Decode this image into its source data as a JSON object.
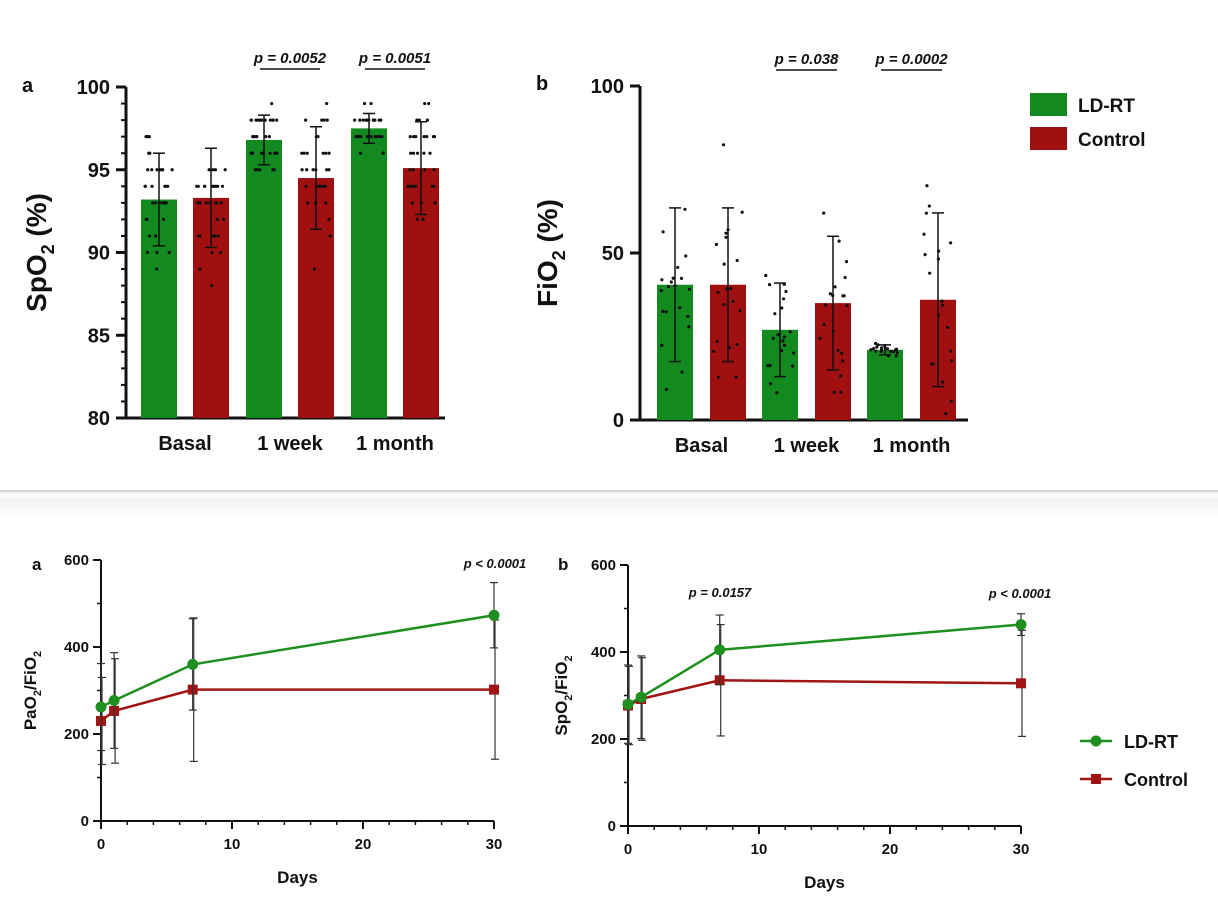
{
  "chart_data": [
    {
      "panel": "a",
      "type": "bar",
      "ylabel_main": "SpO",
      "ylabel_sub": "2",
      "ylabel_tail": " (%)",
      "ylim": [
        80,
        100
      ],
      "yticks": [
        "80",
        "85",
        "90",
        "95",
        "100"
      ],
      "categories": [
        "Basal",
        "1 week",
        "1 month"
      ],
      "series": [
        {
          "name": "LD-RT",
          "values": [
            93.2,
            96.8,
            97.5
          ],
          "sd": [
            2.8,
            1.5,
            0.9
          ]
        },
        {
          "name": "Control",
          "values": [
            93.3,
            94.5,
            95.1
          ],
          "sd": [
            3.0,
            3.1,
            2.8
          ]
        }
      ],
      "annotations": [
        "p = 0.0052",
        "p = 0.0051"
      ]
    },
    {
      "panel": "b",
      "type": "bar",
      "ylabel_main": "FiO",
      "ylabel_sub": "2",
      "ylabel_tail": " (%)",
      "ylim": [
        0,
        100
      ],
      "yticks": [
        "0",
        "50",
        "100"
      ],
      "categories": [
        "Basal",
        "1 week",
        "1 month"
      ],
      "series": [
        {
          "name": "LD-RT",
          "values": [
            40.5,
            27,
            21
          ],
          "sd": [
            23,
            14,
            1.5
          ]
        },
        {
          "name": "Control",
          "values": [
            40.5,
            35,
            36
          ],
          "sd": [
            23,
            20,
            26
          ]
        }
      ],
      "annotations": [
        "p = 0.038",
        "p = 0.0002"
      ]
    },
    {
      "panel": "a",
      "type": "line",
      "ylabel_main": "PaO",
      "ylabel_sub": "2",
      "ylabel_tail": "/FiO",
      "ylabel_sub2": "2",
      "xlabel": "Days",
      "xlim": [
        0,
        30
      ],
      "ylim": [
        0,
        600
      ],
      "xticks": [
        "0",
        "10",
        "20",
        "30"
      ],
      "yticks": [
        "0",
        "200",
        "400",
        "600"
      ],
      "x": [
        0,
        1,
        7,
        30
      ],
      "series": [
        {
          "name": "LD-RT",
          "values": [
            262,
            277,
            360,
            473
          ],
          "sd": [
            100,
            110,
            105,
            75
          ]
        },
        {
          "name": "Control",
          "values": [
            230,
            253,
            302,
            302
          ],
          "sd": [
            100,
            120,
            165,
            160
          ]
        }
      ],
      "annotations": [
        "p < 0.0001"
      ]
    },
    {
      "panel": "b",
      "type": "line",
      "ylabel_main": "SpO",
      "ylabel_sub": "2",
      "ylabel_tail": "/FiO",
      "ylabel_sub2": "2",
      "xlabel": "Days",
      "xlim": [
        0,
        30
      ],
      "ylim": [
        0,
        600
      ],
      "xticks": [
        "0",
        "10",
        "20",
        "30"
      ],
      "yticks": [
        "0",
        "200",
        "400",
        "600"
      ],
      "x": [
        0,
        1,
        7,
        30
      ],
      "series": [
        {
          "name": "LD-RT",
          "values": [
            280,
            296,
            405,
            463
          ],
          "sd": [
            90,
            95,
            80,
            25
          ]
        },
        {
          "name": "Control",
          "values": [
            277,
            292,
            335,
            328
          ],
          "sd": [
            90,
            95,
            128,
            122
          ]
        }
      ],
      "annotations": [
        "p = 0.0157",
        "p < 0.0001"
      ]
    }
  ],
  "legend_top": [
    "LD-RT",
    "Control"
  ],
  "legend_bottom": [
    "LD-RT",
    "Control"
  ],
  "colors": {
    "ld_rt_bar": "#138a1f",
    "control_bar": "#a01010",
    "ld_rt_line": "#1f8f1f",
    "control_line": "#a01414"
  }
}
